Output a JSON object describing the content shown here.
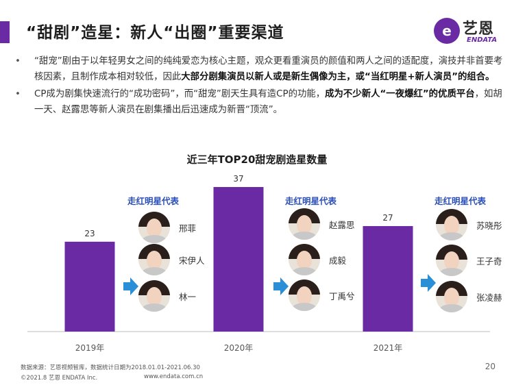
{
  "header": {
    "title": "“甜剧”造星：新人“出圈”重要渠道"
  },
  "logo": {
    "mark": "e",
    "cn": "艺恩",
    "en": "ENDATA"
  },
  "bullets": [
    {
      "plain": "“甜宠”剧由于以年轻男女之间的纯纯爱恋为核心主题，观众更看重演员的颜值和两人之间的适配度，演技并非首要考核因素，且制作成本相对较低，因此",
      "bold": "大部分剧集演员以新人或是新生偶像为主，或“当红明星+新人演员”的组合。",
      "tail": ""
    },
    {
      "plain": "CP成为剧集快速流行的“成功密码”，而“甜宠”剧天生具有造CP的功能，",
      "bold": "成为不少新人“一夜爆红”的优质平台",
      "tail": "，如胡一天、赵露思等新人演员在剧集播出后迅速成为新晋“顶流”。"
    }
  ],
  "chart_data": {
    "type": "bar",
    "title": "近三年TOP20甜宠剧造星数量",
    "categories": [
      "2019年",
      "2020年",
      "2021年"
    ],
    "values": [
      23,
      37,
      27
    ],
    "ylim": [
      0,
      37
    ],
    "bar_color": "#6a2aa3",
    "grid": false,
    "legend": "none"
  },
  "stars": [
    {
      "heading": "走红明星代表",
      "names": [
        "邢菲",
        "宋伊人",
        "林一"
      ]
    },
    {
      "heading": "走红明星代表",
      "names": [
        "赵露思",
        "成毅",
        "丁禹兮"
      ]
    },
    {
      "heading": "走红明星代表",
      "names": [
        "苏晓彤",
        "王子奇",
        "张凌赫"
      ]
    }
  ],
  "colors": {
    "accent": "#6a2aa3",
    "arrow": "#2a8fd6",
    "heading": "#2a4fb8"
  },
  "footer": {
    "source": "数据来源：艺恩视频智库，数据统计日期为2018.01.01-2021.06.30",
    "copyright": "©2021.8 艺恩 ENDATA Inc.",
    "url": "www.endata.com.cn",
    "page": "20"
  }
}
